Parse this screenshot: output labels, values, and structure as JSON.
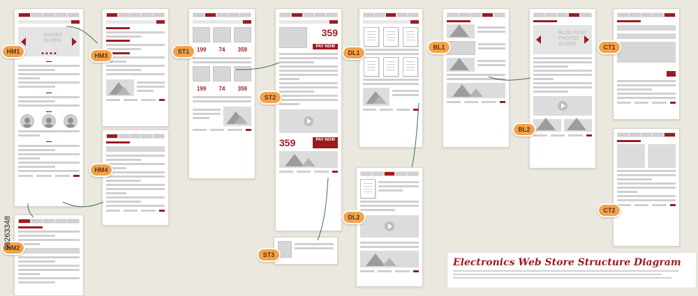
{
  "badges": {
    "hm1": "HM1",
    "hm2": "HM2",
    "hm3": "HM3",
    "hm4": "HM4",
    "st1": "ST1",
    "st2": "ST2",
    "st3": "ST3",
    "dl1": "DL1",
    "dl2": "DL2",
    "bl1": "BL1",
    "bl2": "BL2",
    "ct1": "CT1",
    "ct2": "CT2"
  },
  "slider_text": "IMAGES SLIDER",
  "blog_slider_text": "BLOG POST PHOTOS SLIDER",
  "store": {
    "prices": [
      "199",
      "74",
      "359",
      "199",
      "74",
      "359"
    ],
    "detail_price": "359",
    "detail_price_2": "359",
    "pay_now": "PAY NOW"
  },
  "caption": {
    "title": "Electronics Web Store Structure Diagram"
  },
  "stock_id": "96263348",
  "colors": {
    "accent": "#9b1b1e",
    "badge": "#f2a24c",
    "background": "#ebe8df"
  }
}
